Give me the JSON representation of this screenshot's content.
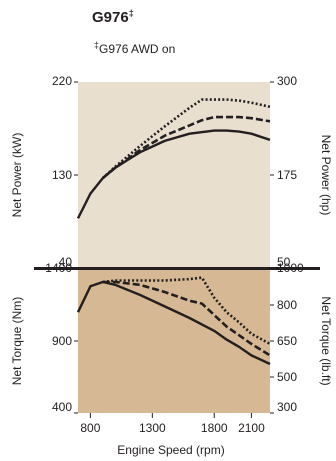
{
  "header": {
    "title": "G976",
    "title_mark": "‡",
    "subtitle_mark": "‡",
    "subtitle": "G976 AWD on"
  },
  "colors": {
    "power_bg": "#e8dfcf",
    "torque_bg": "#d6b994",
    "ink": "#231f20"
  },
  "chart_data": [
    {
      "type": "line",
      "panel": "power",
      "ylabel": "Net Power (kW)",
      "ylabel_right": "Net Power (hp)",
      "xlim": [
        700,
        2250
      ],
      "ylim": [
        40,
        220
      ],
      "yticks": [
        220,
        130,
        40
      ],
      "yticks_right": [
        300,
        175,
        50
      ],
      "series": [
        {
          "style": "solid",
          "x": [
            700,
            800,
            900,
            1000,
            1200,
            1400,
            1600,
            1800,
            1900,
            2000,
            2100,
            2250
          ],
          "y": [
            88,
            112,
            127,
            137,
            152,
            163,
            170,
            173,
            173,
            172,
            170,
            164
          ]
        },
        {
          "style": "dashed",
          "x": [
            900,
            1000,
            1200,
            1400,
            1600,
            1700,
            1800,
            1900,
            2000,
            2100,
            2250
          ],
          "y": [
            127,
            137,
            154,
            168,
            178,
            183,
            186,
            186,
            186,
            185,
            182
          ]
        },
        {
          "style": "dotted",
          "x": [
            900,
            1000,
            1200,
            1400,
            1600,
            1700,
            1800,
            1900,
            2000,
            2100,
            2250
          ],
          "y": [
            127,
            138,
            158,
            177,
            195,
            203,
            203,
            203,
            202,
            200,
            196
          ]
        }
      ]
    },
    {
      "type": "line",
      "panel": "torque",
      "ylabel": "Net Torque (Nm)",
      "ylabel_right": "Net Torque (lb.ft)",
      "xlabel": "Engine Speed (rpm)",
      "xlim": [
        700,
        2250
      ],
      "ylim": [
        400,
        1400
      ],
      "yticks": [
        1400,
        900,
        400
      ],
      "yticks_right": [
        1000,
        800,
        650,
        500,
        300
      ],
      "xticks": [
        800,
        1300,
        1800,
        2100
      ],
      "series": [
        {
          "style": "solid",
          "x": [
            700,
            800,
            900,
            1000,
            1200,
            1400,
            1600,
            1800,
            1900,
            2000,
            2100,
            2250
          ],
          "y": [
            1100,
            1280,
            1310,
            1290,
            1220,
            1140,
            1060,
            970,
            910,
            860,
            800,
            740
          ]
        },
        {
          "style": "dashed",
          "x": [
            900,
            1000,
            1200,
            1400,
            1600,
            1700,
            1800,
            1900,
            2000,
            2100,
            2250
          ],
          "y": [
            1310,
            1310,
            1290,
            1240,
            1180,
            1160,
            1080,
            1000,
            940,
            880,
            800
          ]
        },
        {
          "style": "dotted",
          "x": [
            900,
            1000,
            1200,
            1400,
            1600,
            1700,
            1800,
            1900,
            2000,
            2100,
            2250
          ],
          "y": [
            1310,
            1320,
            1320,
            1320,
            1330,
            1340,
            1200,
            1100,
            1030,
            950,
            880
          ]
        }
      ]
    }
  ]
}
